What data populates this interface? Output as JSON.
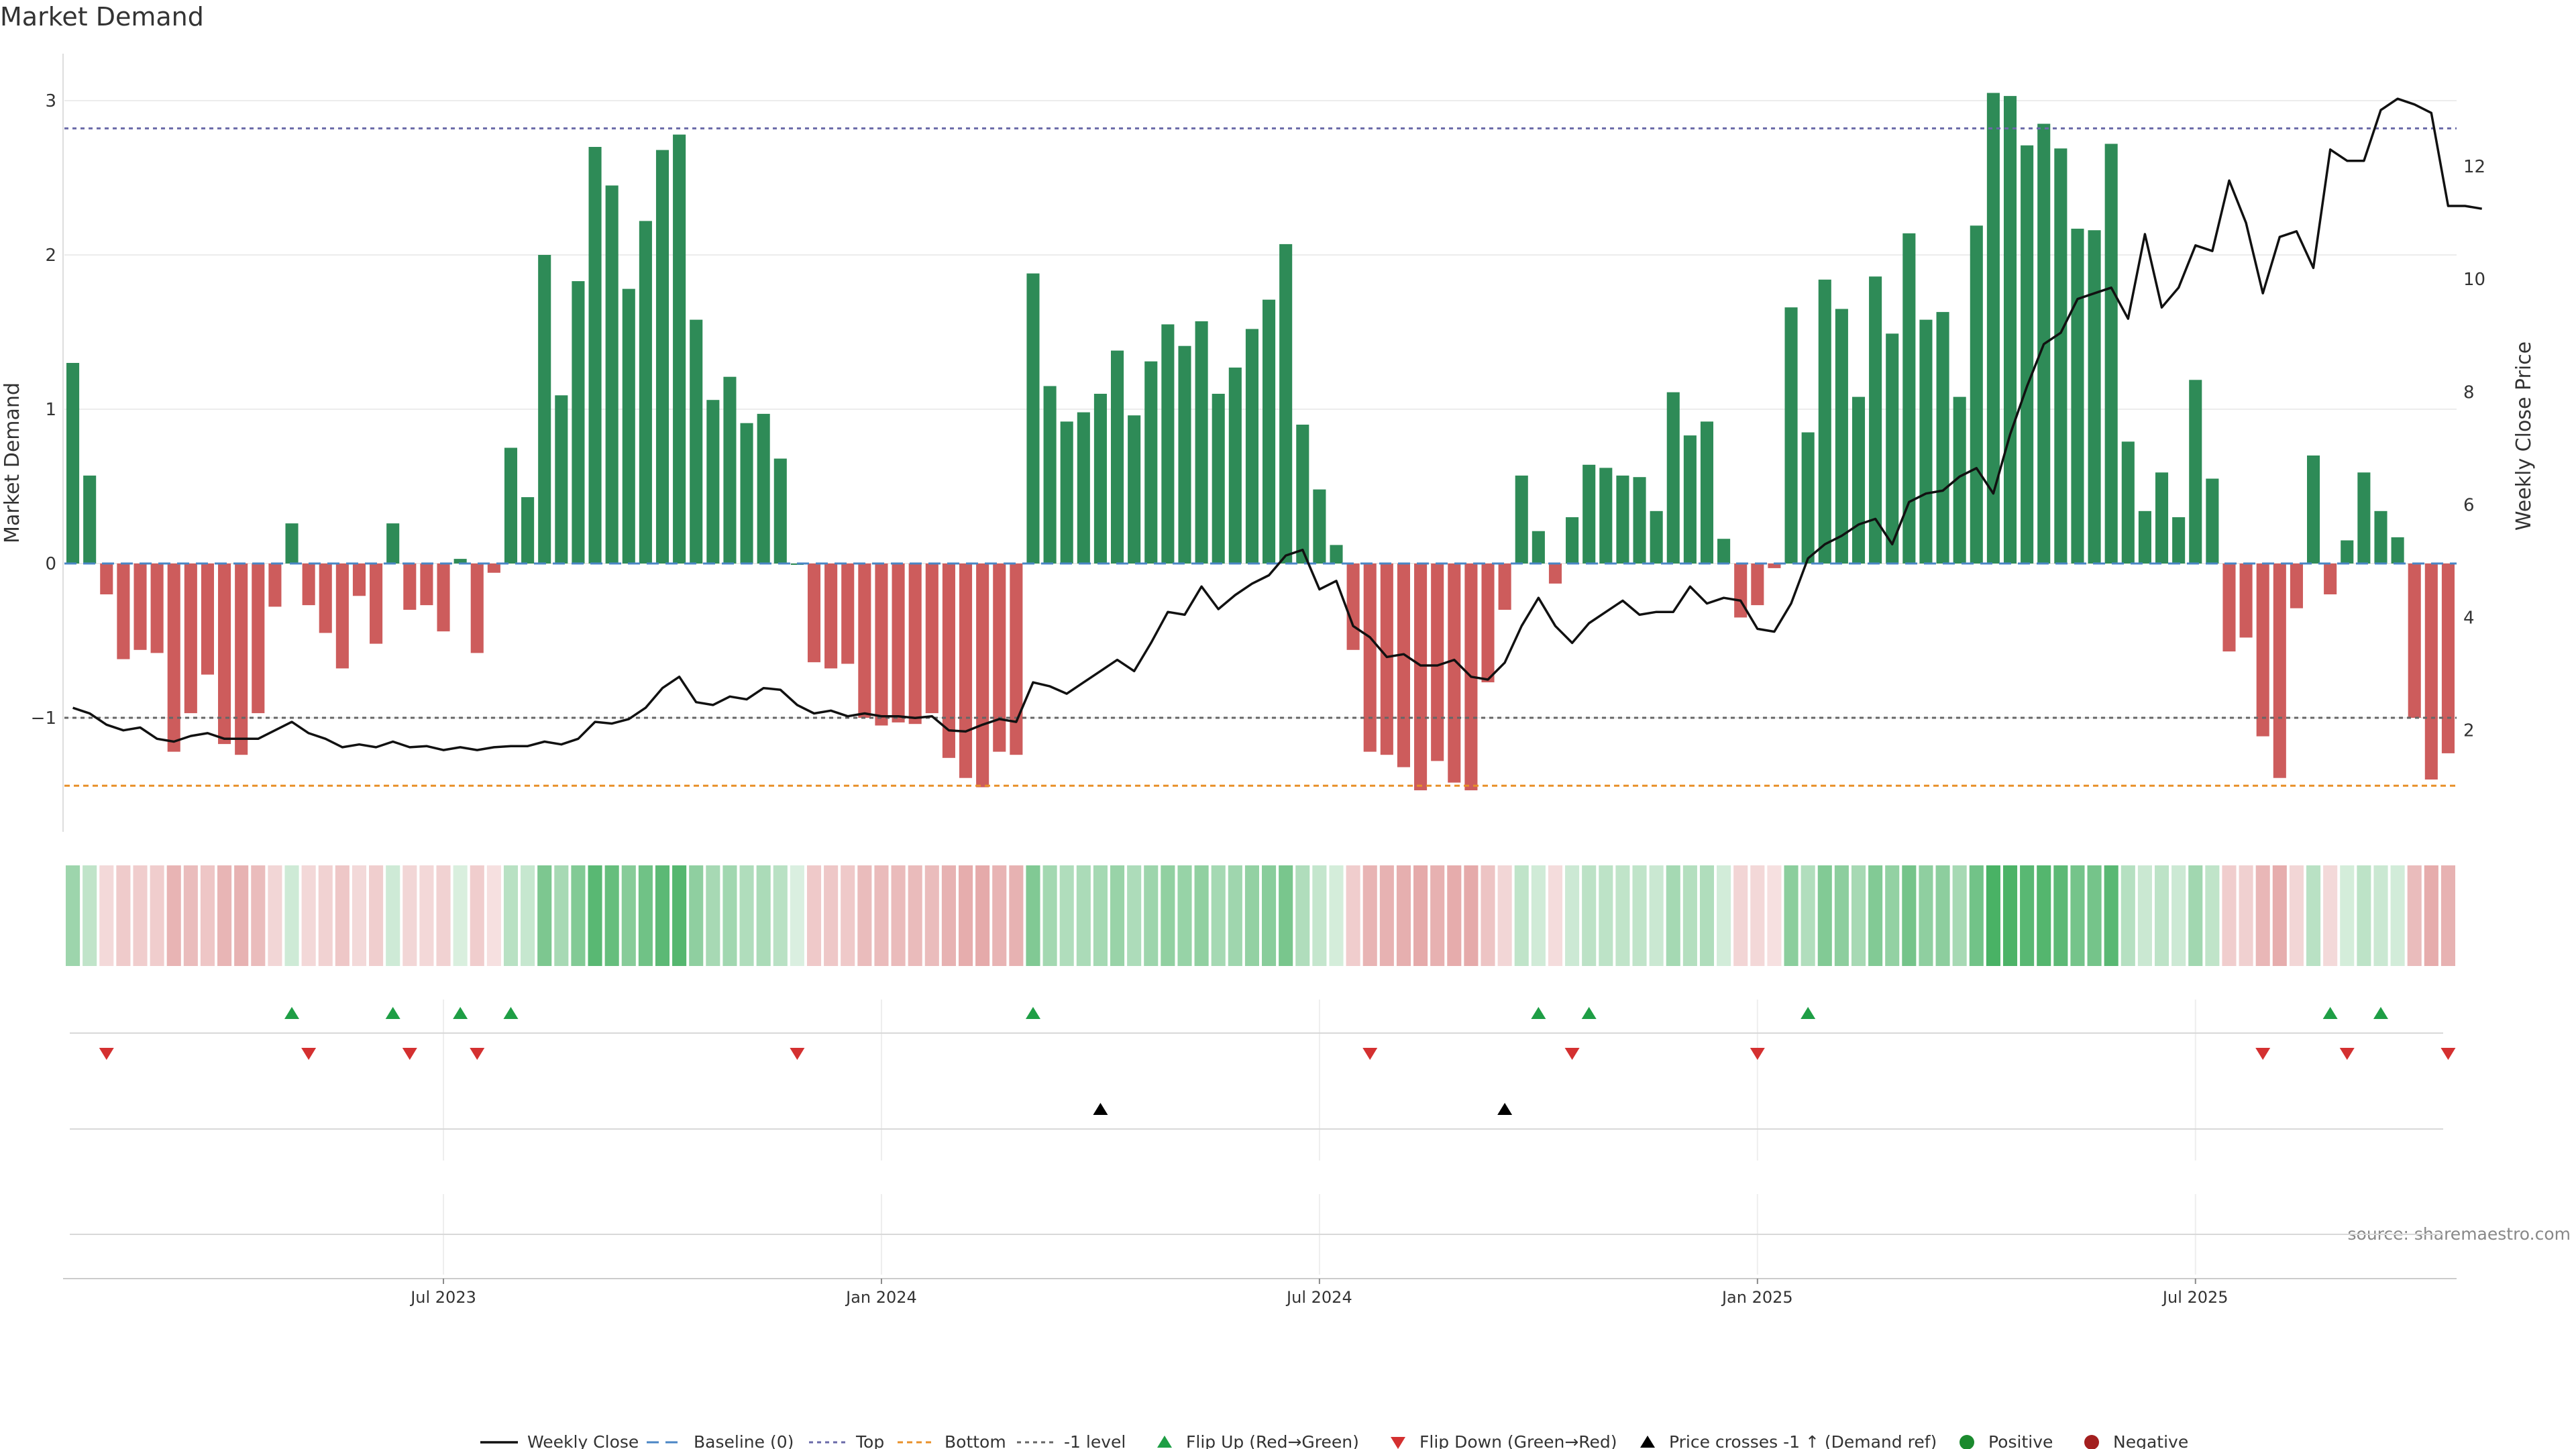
{
  "chart_data": {
    "title": "Market Demand",
    "type": "bar",
    "source": "source: sharemaestro.com",
    "left_axis": {
      "label": "Market Demand",
      "ylim": [
        -1.7,
        3.3
      ],
      "ticks": [
        3,
        2,
        1,
        0,
        -1
      ],
      "tick_labels": [
        "3",
        "2",
        "1",
        "0",
        "−1"
      ]
    },
    "right_axis": {
      "label": "Weekly Close Price",
      "ylim": [
        0.2,
        14.0
      ],
      "ticks": [
        12,
        10,
        8,
        6,
        4,
        2
      ],
      "tick_labels": [
        "12",
        "10",
        "8",
        "6",
        "4",
        "2"
      ]
    },
    "levels": {
      "top": 2.82,
      "minus_one": -1.0,
      "bottom": -1.44,
      "baseline": 0
    },
    "x_axis": {
      "ticks": [
        22,
        48,
        74,
        100,
        126
      ],
      "tick_labels": [
        "Jul 2023",
        "Jan 2024",
        "Jul 2024",
        "Jan 2025",
        "Jul 2025"
      ]
    },
    "demand": [
      1.3,
      0.57,
      -0.2,
      -0.62,
      -0.56,
      -0.58,
      -1.22,
      -0.97,
      -0.72,
      -1.17,
      -1.24,
      -0.97,
      -0.28,
      0.26,
      -0.27,
      -0.45,
      -0.68,
      -0.21,
      -0.52,
      0.26,
      -0.3,
      -0.27,
      -0.44,
      0.03,
      -0.58,
      -0.06,
      0.75,
      0.43,
      2.0,
      1.09,
      1.83,
      2.7,
      2.45,
      1.78,
      2.22,
      2.68,
      2.78,
      1.58,
      1.06,
      1.21,
      0.91,
      0.97,
      0.68,
      0.0,
      -0.64,
      -0.68,
      -0.65,
      -1.0,
      -1.05,
      -1.03,
      -1.04,
      -0.97,
      -1.26,
      -1.39,
      -1.45,
      -1.22,
      -1.24,
      1.88,
      1.15,
      0.92,
      0.98,
      1.1,
      1.38,
      0.96,
      1.31,
      1.55,
      1.41,
      1.57,
      1.1,
      1.27,
      1.52,
      1.71,
      2.07,
      0.9,
      0.48,
      0.12,
      -0.56,
      -1.22,
      -1.24,
      -1.32,
      -1.47,
      -1.28,
      -1.42,
      -1.47,
      -0.77,
      -0.3,
      0.57,
      0.21,
      -0.13,
      0.3,
      0.64,
      0.62,
      0.57,
      0.56,
      0.34,
      1.11,
      0.83,
      0.92,
      0.16,
      -0.35,
      -0.27,
      -0.03,
      1.66,
      0.85,
      1.84,
      1.65,
      1.08,
      1.86,
      1.49,
      2.14,
      1.58,
      1.63,
      1.08,
      2.19,
      3.05,
      3.03,
      2.71,
      2.85,
      2.69,
      2.17,
      2.16,
      2.72,
      0.79,
      0.34,
      0.59,
      0.3,
      1.19,
      0.55,
      -0.57,
      -0.48,
      -1.12,
      -1.39,
      -0.29,
      0.7,
      -0.2,
      0.15,
      0.59,
      0.34,
      0.17,
      -1.0,
      -1.4,
      -1.23
    ],
    "price": [
      2.4,
      2.3,
      2.1,
      2.0,
      2.05,
      1.85,
      1.8,
      1.9,
      1.95,
      1.85,
      1.85,
      1.85,
      2.0,
      2.15,
      1.95,
      1.85,
      1.7,
      1.75,
      1.7,
      1.8,
      1.7,
      1.72,
      1.65,
      1.7,
      1.65,
      1.7,
      1.72,
      1.72,
      1.8,
      1.75,
      1.85,
      2.15,
      2.12,
      2.2,
      2.4,
      2.75,
      2.95,
      2.5,
      2.45,
      2.6,
      2.55,
      2.75,
      2.72,
      2.45,
      2.3,
      2.35,
      2.25,
      2.3,
      2.25,
      2.25,
      2.22,
      2.25,
      2.0,
      1.98,
      2.1,
      2.2,
      2.15,
      2.85,
      2.78,
      2.65,
      2.85,
      3.05,
      3.25,
      3.05,
      3.55,
      4.1,
      4.05,
      4.55,
      4.15,
      4.4,
      4.6,
      4.75,
      5.1,
      5.2,
      4.5,
      4.65,
      3.85,
      3.65,
      3.3,
      3.35,
      3.15,
      3.15,
      3.25,
      2.95,
      2.9,
      3.2,
      3.85,
      4.35,
      3.85,
      3.55,
      3.9,
      4.1,
      4.3,
      4.05,
      4.1,
      4.1,
      4.55,
      4.25,
      4.35,
      4.3,
      3.8,
      3.75,
      4.25,
      5.05,
      5.3,
      5.45,
      5.65,
      5.75,
      5.3,
      6.05,
      6.2,
      6.25,
      6.5,
      6.65,
      6.2,
      7.25,
      8.1,
      8.85,
      9.05,
      9.65,
      9.75,
      9.85,
      9.3,
      10.8,
      9.5,
      9.85,
      10.6,
      10.5,
      11.75,
      11.0,
      9.75,
      10.75,
      10.85,
      10.2,
      12.3,
      12.1,
      12.1,
      13.0,
      13.2,
      13.1,
      12.95,
      11.3,
      11.3,
      11.25
    ],
    "flip_up": [
      13,
      19,
      23,
      26,
      57,
      87,
      90,
      103,
      134,
      137
    ],
    "flip_down": [
      2,
      14,
      20,
      24,
      43,
      77,
      89,
      100,
      130,
      135,
      141
    ],
    "price_cross": [
      61,
      85
    ],
    "legend": [
      "Weekly Close",
      "Baseline (0)",
      "Top",
      "Bottom",
      "-1 level",
      "Flip Up (Red→Green)",
      "Flip Down (Green→Red)",
      "Price crosses -1 ↑ (Demand ref)",
      "Positive",
      "Negative"
    ],
    "colors": {
      "positive": "#2e8b57",
      "negative": "#cd5c5c",
      "price": "#111111",
      "top": "#6a6aa8",
      "bottom": "#e8902a",
      "minus_one": "#666666",
      "baseline": "#4a86c5",
      "flip_up": "#1e9e45",
      "flip_down": "#d43030",
      "cross": "#000000",
      "pos_dot": "#1b8a2e",
      "neg_dot": "#a31f1f"
    }
  }
}
